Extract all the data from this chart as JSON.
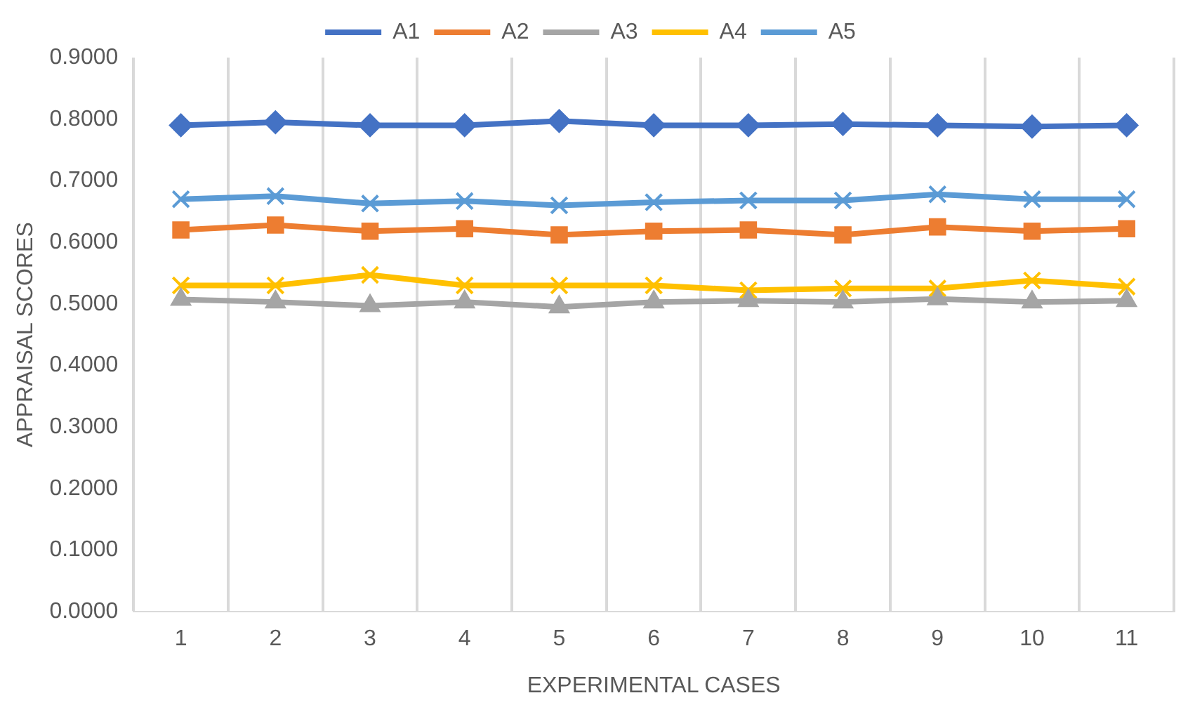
{
  "chart_data": {
    "type": "line",
    "xlabel": "EXPERIMENTAL CASES",
    "ylabel": "APPRAISAL SCORES",
    "categories": [
      "1",
      "2",
      "3",
      "4",
      "5",
      "6",
      "7",
      "8",
      "9",
      "10",
      "11"
    ],
    "series": [
      {
        "name": "A1",
        "color": "#4472c4",
        "marker": "diamond",
        "values": [
          0.79,
          0.795,
          0.79,
          0.79,
          0.797,
          0.79,
          0.79,
          0.792,
          0.79,
          0.788,
          0.79
        ]
      },
      {
        "name": "A2",
        "color": "#ed7d31",
        "marker": "square",
        "values": [
          0.62,
          0.628,
          0.618,
          0.622,
          0.612,
          0.618,
          0.62,
          0.612,
          0.625,
          0.618,
          0.622
        ]
      },
      {
        "name": "A3",
        "color": "#a5a5a5",
        "marker": "triangle",
        "values": [
          0.507,
          0.503,
          0.497,
          0.503,
          0.495,
          0.503,
          0.505,
          0.503,
          0.508,
          0.503,
          0.505
        ]
      },
      {
        "name": "A4",
        "color": "#ffc000",
        "marker": "cross",
        "values": [
          0.53,
          0.53,
          0.547,
          0.53,
          0.53,
          0.53,
          0.522,
          0.525,
          0.525,
          0.538,
          0.528
        ]
      },
      {
        "name": "A5",
        "color": "#5b9bd5",
        "marker": "cross",
        "values": [
          0.67,
          0.675,
          0.663,
          0.667,
          0.66,
          0.665,
          0.668,
          0.668,
          0.678,
          0.67,
          0.67
        ]
      }
    ],
    "ylim": [
      0,
      0.9
    ],
    "yticks": [
      {
        "value": 0,
        "label": "0.0000"
      },
      {
        "value": 0.1,
        "label": "0.1000"
      },
      {
        "value": 0.2,
        "label": "0.2000"
      },
      {
        "value": 0.3,
        "label": "0.3000"
      },
      {
        "value": 0.4,
        "label": "0.4000"
      },
      {
        "value": 0.5,
        "label": "0.5000"
      },
      {
        "value": 0.6,
        "label": "0.6000"
      },
      {
        "value": 0.7,
        "label": "0.7000"
      },
      {
        "value": 0.8,
        "label": "0.8000"
      },
      {
        "value": 0.9,
        "label": "0.9000"
      }
    ],
    "grid": "x",
    "legend": "top"
  }
}
